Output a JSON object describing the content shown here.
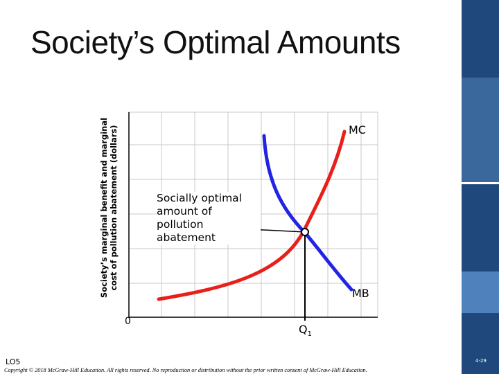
{
  "slide": {
    "title": "Society’s Optimal Amounts",
    "learning_objective": "LO5",
    "copyright": "Copyright © 2018 McGraw-Hill Education. All rights reserved. No reproduction or distribution without the prior written consent of McGraw-Hill Education.",
    "page_number": "4-29"
  },
  "diagram": {
    "y_axis_label": "Society’s marginal benefit and marginal cost of pollution abatement (dollars)",
    "origin_label": "0",
    "q_label": "Q",
    "q_subscript": "1",
    "mc_label": "MC",
    "mb_label": "MB",
    "annotation": "Socially optimal amount of pollution abatement",
    "colors": {
      "mc_curve": "#e8201c",
      "mb_curve": "#2323e6",
      "grid": "#c8c8c8",
      "band_dark": "#1f497d",
      "band_mid": "#3a679c",
      "band_light": "#4f81bd"
    }
  }
}
